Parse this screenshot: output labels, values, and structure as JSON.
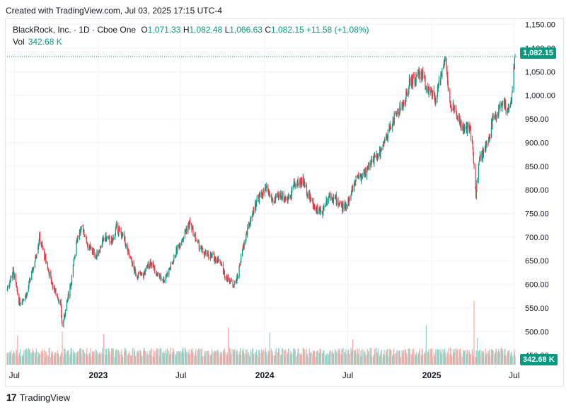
{
  "caption": "Created with TradingView.com, Jul 03, 2025 17:15 UTC-4",
  "legend": {
    "name": "BlackRock, Inc. · 1D · Cboe One",
    "o_key": "O",
    "o_val": "1,071.33",
    "h_key": "H",
    "h_val": "1,082.48",
    "l_key": "L",
    "l_val": "1,066.63",
    "c_key": "C",
    "c_val": "1,082.15",
    "chg": "+11.58 (+1.08%)",
    "vol_key": "Vol",
    "vol_val": "342.68 K"
  },
  "last_price_badge": "1,082.15",
  "last_volume_badge": "342.68 K",
  "footer": {
    "logo_text": "TradingView",
    "logo_mark": "17"
  },
  "colors": {
    "up": "#089981",
    "down": "#f23645",
    "up_vol": "#8fd1c5",
    "down_vol": "#f7a9a7",
    "grid": "#f0f3fa"
  },
  "chart_data": {
    "type": "candlestick",
    "series_name": "BlackRock, Inc.",
    "price_axis": {
      "ticks": [
        450,
        500,
        550,
        600,
        650,
        700,
        750,
        800,
        850,
        900,
        950,
        1000,
        1050,
        1100,
        1150
      ],
      "tick_labels": [
        "450.00",
        "500.00",
        "550.00",
        "600.00",
        "650.00",
        "700.00",
        "750.00",
        "800.00",
        "850.00",
        "900.00",
        "950.00",
        "1,000.00",
        "1,050.00",
        "1,100.00",
        "1,150.00"
      ],
      "range": [
        430,
        1160
      ]
    },
    "time_axis": {
      "labels": [
        "Jul",
        "2023",
        "Jul",
        "2024",
        "Jul",
        "2025",
        "Jul"
      ],
      "dates": [
        "2022-07-01",
        "2023-01-01",
        "2023-07-01",
        "2024-01-01",
        "2024-07-01",
        "2025-01-01",
        "2025-07-01"
      ],
      "range": [
        "2022-06-15",
        "2025-07-03"
      ]
    },
    "closes": [
      [
        "2022-06-15",
        590
      ],
      [
        "2022-06-28",
        630
      ],
      [
        "2022-07-12",
        560
      ],
      [
        "2022-07-28",
        580
      ],
      [
        "2022-08-15",
        650
      ],
      [
        "2022-08-25",
        700
      ],
      [
        "2022-09-08",
        650
      ],
      [
        "2022-09-22",
        600
      ],
      [
        "2022-10-10",
        560
      ],
      [
        "2022-10-14",
        510
      ],
      [
        "2022-10-24",
        560
      ],
      [
        "2022-11-05",
        620
      ],
      [
        "2022-11-15",
        700
      ],
      [
        "2022-11-28",
        720
      ],
      [
        "2022-12-10",
        680
      ],
      [
        "2022-12-28",
        660
      ],
      [
        "2023-01-15",
        700
      ],
      [
        "2023-02-01",
        690
      ],
      [
        "2023-02-10",
        720
      ],
      [
        "2023-02-25",
        700
      ],
      [
        "2023-03-10",
        660
      ],
      [
        "2023-03-25",
        620
      ],
      [
        "2023-04-10",
        620
      ],
      [
        "2023-04-25",
        650
      ],
      [
        "2023-05-10",
        620
      ],
      [
        "2023-05-25",
        610
      ],
      [
        "2023-06-10",
        640
      ],
      [
        "2023-06-25",
        680
      ],
      [
        "2023-07-05",
        700
      ],
      [
        "2023-07-20",
        730
      ],
      [
        "2023-08-05",
        690
      ],
      [
        "2023-08-20",
        665
      ],
      [
        "2023-09-05",
        660
      ],
      [
        "2023-09-25",
        650
      ],
      [
        "2023-10-05",
        620
      ],
      [
        "2023-10-25",
        600
      ],
      [
        "2023-11-01",
        610
      ],
      [
        "2023-11-15",
        680
      ],
      [
        "2023-11-30",
        735
      ],
      [
        "2023-12-15",
        780
      ],
      [
        "2024-01-05",
        800
      ],
      [
        "2024-01-20",
        775
      ],
      [
        "2024-02-05",
        790
      ],
      [
        "2024-02-20",
        780
      ],
      [
        "2024-03-05",
        810
      ],
      [
        "2024-03-25",
        820
      ],
      [
        "2024-04-10",
        780
      ],
      [
        "2024-04-22",
        760
      ],
      [
        "2024-05-05",
        750
      ],
      [
        "2024-05-20",
        790
      ],
      [
        "2024-06-05",
        780
      ],
      [
        "2024-06-20",
        760
      ],
      [
        "2024-07-05",
        780
      ],
      [
        "2024-07-20",
        830
      ],
      [
        "2024-08-05",
        830
      ],
      [
        "2024-08-20",
        860
      ],
      [
        "2024-09-05",
        870
      ],
      [
        "2024-09-20",
        900
      ],
      [
        "2024-10-05",
        940
      ],
      [
        "2024-10-20",
        970
      ],
      [
        "2024-11-01",
        980
      ],
      [
        "2024-11-15",
        1030
      ],
      [
        "2024-11-30",
        1035
      ],
      [
        "2024-12-10",
        1050
      ],
      [
        "2024-12-20",
        1020
      ],
      [
        "2025-01-03",
        1000
      ],
      [
        "2025-01-10",
        985
      ],
      [
        "2025-01-24",
        1060
      ],
      [
        "2025-01-31",
        1080
      ],
      [
        "2025-02-10",
        980
      ],
      [
        "2025-02-25",
        960
      ],
      [
        "2025-03-05",
        940
      ],
      [
        "2025-03-15",
        920
      ],
      [
        "2025-03-25",
        940
      ],
      [
        "2025-04-04",
        860
      ],
      [
        "2025-04-08",
        790
      ],
      [
        "2025-04-15",
        870
      ],
      [
        "2025-04-25",
        880
      ],
      [
        "2025-05-05",
        900
      ],
      [
        "2025-05-15",
        950
      ],
      [
        "2025-05-25",
        960
      ],
      [
        "2025-06-05",
        990
      ],
      [
        "2025-06-15",
        970
      ],
      [
        "2025-06-25",
        990
      ],
      [
        "2025-07-03",
        1082.15
      ]
    ],
    "volume_spikes": [
      [
        "2022-07-08",
        0.46
      ],
      [
        "2022-10-14",
        0.52
      ],
      [
        "2023-01-13",
        0.48
      ],
      [
        "2023-10-13",
        0.58
      ],
      [
        "2024-01-12",
        0.5
      ],
      [
        "2024-07-12",
        0.4
      ],
      [
        "2024-12-20",
        0.62
      ],
      [
        "2025-04-04",
        1.0
      ],
      [
        "2025-04-11",
        0.42
      ]
    ],
    "last_close": 1082.15,
    "last_volume_k": 342.68
  }
}
